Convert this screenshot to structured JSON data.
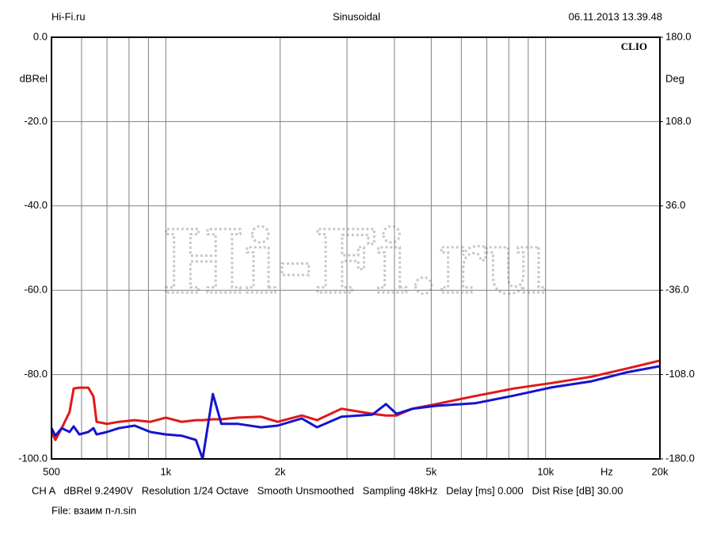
{
  "chart_data": {
    "type": "line",
    "header_left": "Hi-Fi.ru",
    "title": "Sinusoidal",
    "header_right": "06.11.2013 13.39.48",
    "brand": "CLIO",
    "watermark": "Hi-Fi.ru",
    "ylabel": "dBRel",
    "y2label": "Deg",
    "x_unit": "Hz",
    "footer": "CH A   dBRel 9.2490V   Resolution 1/24 Octave   Smooth Unsmoothed   Sampling 48kHz   Delay [ms] 0.000   Dist Rise [dB] 30.00",
    "file": "File: взаим п-л.sin",
    "xscale": "log",
    "grid": true,
    "xlim": [
      500,
      20000
    ],
    "xticks": [
      500,
      {
        "value": 1000,
        "label": "1k"
      },
      {
        "value": 2000,
        "label": "2k"
      },
      {
        "value": 5000,
        "label": "5k"
      },
      {
        "value": 10000,
        "label": "10k"
      },
      {
        "value": 20000,
        "label": "20k"
      }
    ],
    "xminor": [
      600,
      700,
      800,
      900,
      3000,
      4000,
      6000,
      7000,
      8000,
      9000
    ],
    "ylim": [
      -100,
      0
    ],
    "yticks": [
      {
        "value": 0,
        "label": "0.0"
      },
      {
        "value": -20,
        "label": "-20.0"
      },
      {
        "value": -40,
        "label": "-40.0"
      },
      {
        "value": -60,
        "label": "-60.0"
      },
      {
        "value": -80,
        "label": "-80.0"
      },
      {
        "value": -100,
        "label": "-100.0"
      }
    ],
    "y2lim": [
      -180,
      180
    ],
    "y2ticks": [
      {
        "value": 180,
        "label": "180.0"
      },
      {
        "value": 108,
        "label": "108.0"
      },
      {
        "value": 36,
        "label": "36.0"
      },
      {
        "value": -36,
        "label": "-36.0"
      },
      {
        "value": -108,
        "label": "-108.0"
      },
      {
        "value": -180,
        "label": "-180.0"
      }
    ],
    "x": [
      500,
      512,
      532,
      558,
      572,
      592,
      625,
      645,
      657,
      700,
      752,
      828,
      910,
      1000,
      1100,
      1200,
      1250,
      1330,
      1400,
      1550,
      1780,
      1970,
      2280,
      2500,
      2900,
      3500,
      3800,
      4050,
      4460,
      5150,
      6520,
      8240,
      10400,
      13200,
      16300,
      20000
    ],
    "series": [
      {
        "color": "#e01818",
        "values": [
          -93.6,
          -95.5,
          -92.7,
          -88.9,
          -83.3,
          -83.1,
          -83.1,
          -85.2,
          -91.2,
          -91.7,
          -91.2,
          -90.8,
          -91.2,
          -90.2,
          -91.2,
          -90.8,
          -90.8,
          -90.6,
          -90.6,
          -90.2,
          -90.0,
          -91.2,
          -89.7,
          -90.8,
          -88.1,
          -89.3,
          -89.7,
          -89.7,
          -88.1,
          -87.0,
          -85.1,
          -83.3,
          -82.0,
          -80.5,
          -78.6,
          -76.7
        ]
      },
      {
        "color": "#1414d0",
        "values": [
          -92.7,
          -94.5,
          -92.7,
          -93.6,
          -92.3,
          -94.2,
          -93.6,
          -92.7,
          -94.2,
          -93.6,
          -92.7,
          -92.1,
          -93.6,
          -94.2,
          -94.5,
          -95.5,
          -100,
          -84.6,
          -91.7,
          -91.7,
          -92.5,
          -92.1,
          -90.4,
          -92.5,
          -90.0,
          -89.5,
          -87.0,
          -89.3,
          -88.1,
          -87.4,
          -86.8,
          -85.0,
          -83.0,
          -81.6,
          -79.5,
          -78.0
        ]
      }
    ]
  }
}
